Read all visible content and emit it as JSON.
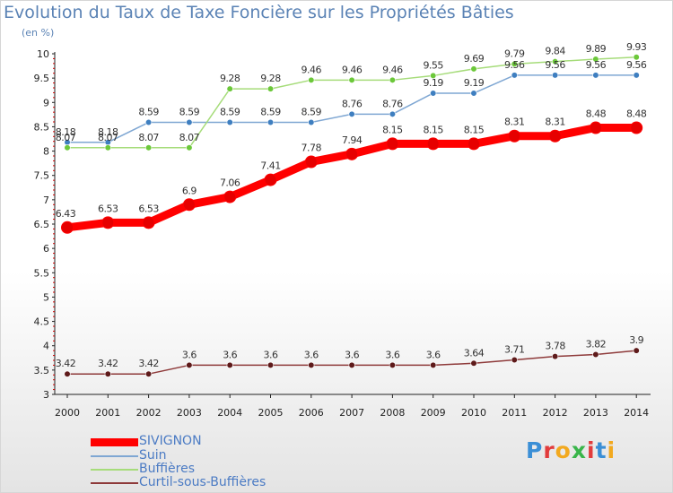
{
  "title": "Evolution du Taux de Taxe Foncière sur les Propriétés Bâties",
  "subtitle": "(en %)",
  "logo": {
    "letters": [
      "P",
      "r",
      "o",
      "x",
      "i",
      "t",
      "i"
    ],
    "colors": [
      "#3b8fd6",
      "#e23c3c",
      "#f2a91f",
      "#39b54a",
      "#e23c3c",
      "#3b8fd6",
      "#f2a91f"
    ]
  },
  "chart_data": {
    "type": "line",
    "x": [
      "2000",
      "2001",
      "2002",
      "2003",
      "2004",
      "2005",
      "2006",
      "2007",
      "2008",
      "2009",
      "2010",
      "2011",
      "2012",
      "2013",
      "2014"
    ],
    "ylim": [
      3,
      10
    ],
    "yticks": [
      "3",
      "3.5",
      "4",
      "4.5",
      "5",
      "5.5",
      "6",
      "6.5",
      "7",
      "7.5",
      "8",
      "8.5",
      "9",
      "9.5",
      "10"
    ],
    "grid": false,
    "legend_position": "bottom-left",
    "series": [
      {
        "name": "SIVIGNON",
        "color": "#ff0000",
        "marker_color": "#e60000",
        "width": 9,
        "values": [
          6.43,
          6.53,
          6.53,
          6.9,
          7.06,
          7.41,
          7.78,
          7.94,
          8.15,
          8.15,
          8.15,
          8.31,
          8.31,
          8.48,
          8.48
        ],
        "labels": [
          "6.43",
          "6.53",
          "6.53",
          "6.9",
          "7.06",
          "7.41",
          "7.78",
          "7.94",
          "8.15",
          "8.15",
          "8.15",
          "8.31",
          "8.31",
          "8.48",
          "8.48"
        ]
      },
      {
        "name": "Suin",
        "color": "#7fa7d3",
        "marker_color": "#3f7fc0",
        "width": 1.5,
        "values": [
          8.18,
          8.18,
          8.59,
          8.59,
          8.59,
          8.59,
          8.59,
          8.76,
          8.76,
          9.19,
          9.19,
          9.56,
          9.56,
          9.56,
          9.56
        ],
        "labels": [
          "8.18",
          "8.18",
          "8.59",
          "8.59",
          "8.59",
          "8.59",
          "8.59",
          "8.76",
          "8.76",
          "9.19",
          "9.19",
          "9.56",
          "9.56",
          "9.56",
          "9.56"
        ]
      },
      {
        "name": "Buffières",
        "color": "#a6dc7a",
        "marker_color": "#6cc83a",
        "width": 1.5,
        "values": [
          8.07,
          8.07,
          8.07,
          8.07,
          9.28,
          9.28,
          9.46,
          9.46,
          9.46,
          9.55,
          9.69,
          9.79,
          9.84,
          9.89,
          9.93
        ],
        "labels": [
          "8.07",
          "8.07",
          "8.07",
          "8.07",
          "9.28",
          "9.28",
          "9.46",
          "9.46",
          "9.46",
          "9.55",
          "9.69",
          "9.79",
          "9.84",
          "9.89",
          "9.93"
        ]
      },
      {
        "name": "Curtil-sous-Buffières",
        "color": "#8e3a3a",
        "marker_color": "#5e1a1a",
        "width": 1.5,
        "values": [
          3.42,
          3.42,
          3.42,
          3.6,
          3.6,
          3.6,
          3.6,
          3.6,
          3.6,
          3.6,
          3.64,
          3.71,
          3.78,
          3.82,
          3.9
        ],
        "labels": [
          "3.42",
          "3.42",
          "3.42",
          "3.6",
          "3.6",
          "3.6",
          "3.6",
          "3.6",
          "3.6",
          "3.6",
          "3.64",
          "3.71",
          "3.78",
          "3.82",
          "3.9"
        ]
      }
    ]
  }
}
